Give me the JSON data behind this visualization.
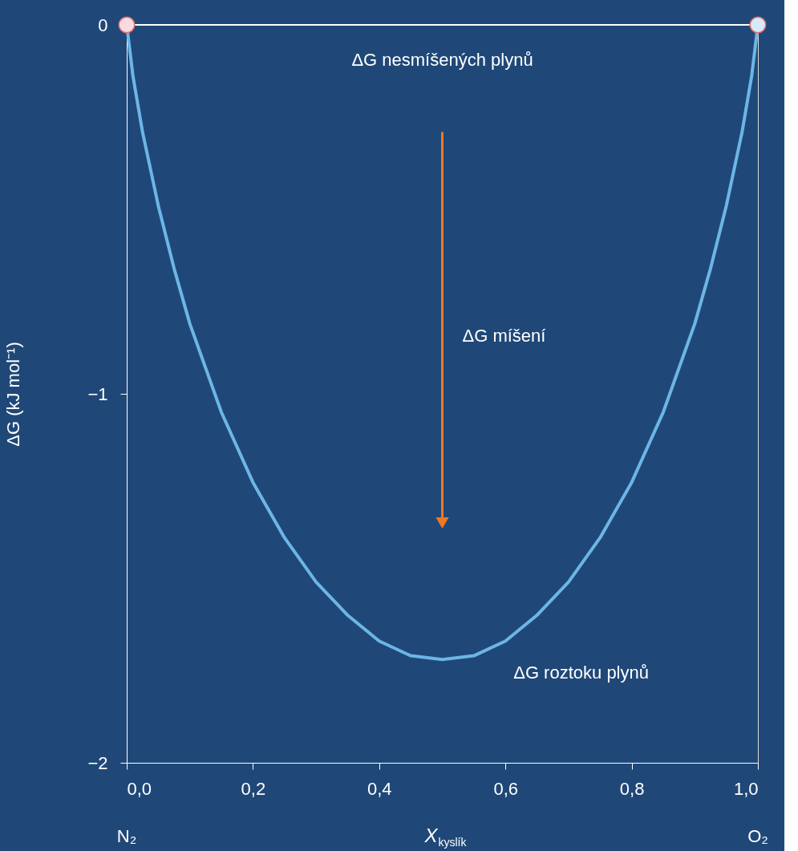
{
  "chart_data": {
    "type": "line",
    "xlabel": "X$_{kyslík}$",
    "ylabel": "ΔG (kJ mol⁻¹)",
    "xlim": [
      0,
      1
    ],
    "ylim": [
      -2,
      0
    ],
    "xticks": [
      {
        "value": 0,
        "label": "0,0"
      },
      {
        "value": 0.2,
        "label": "0,2"
      },
      {
        "value": 0.4,
        "label": "0,4"
      },
      {
        "value": 0.6,
        "label": "0,6"
      },
      {
        "value": 0.8,
        "label": "0,8"
      },
      {
        "value": 1,
        "label": "1,0"
      }
    ],
    "yticks": [
      0,
      {
        "value": -1,
        "label": "−1"
      },
      {
        "value": -2,
        "label": "−2"
      }
    ],
    "grid": false,
    "series": [
      {
        "color": "#6cb6e6",
        "x": [
          0,
          0.01,
          0.025,
          0.05,
          0.075,
          0.1,
          0.15,
          0.2,
          0.25,
          0.3,
          0.35,
          0.4,
          0.45,
          0.5,
          0.55,
          0.6,
          0.65,
          0.7,
          0.75,
          0.8,
          0.85,
          0.9,
          0.925,
          0.95,
          0.975,
          0.99,
          1
        ],
        "values": [
          0,
          -0.14,
          -0.29,
          -0.49,
          -0.66,
          -0.81,
          -1.05,
          -1.24,
          -1.39,
          -1.51,
          -1.6,
          -1.67,
          -1.71,
          -1.72,
          -1.71,
          -1.67,
          -1.6,
          -1.51,
          -1.39,
          -1.24,
          -1.05,
          -0.81,
          -0.66,
          -0.49,
          -0.29,
          -0.14,
          0
        ]
      },
      {
        "type": "scatter",
        "x": [
          0,
          1
        ],
        "values": [
          0,
          0
        ],
        "colors": [
          "#f9dadf",
          "#d6eaf8"
        ],
        "marker": "circle"
      },
      {
        "type": "line",
        "color": "#f07820",
        "x": [
          0.5,
          0.5
        ],
        "values": [
          -0.29,
          -1.35
        ]
      }
    ],
    "ref_lines": [
      {
        "axis": "y",
        "value": 0,
        "label": "ΔG nesmíšených plynů",
        "color": "#ffffff"
      }
    ],
    "annotations": [
      "ΔG míšení",
      "ΔG roztoku plynů",
      "N₂",
      "O₂"
    ]
  }
}
